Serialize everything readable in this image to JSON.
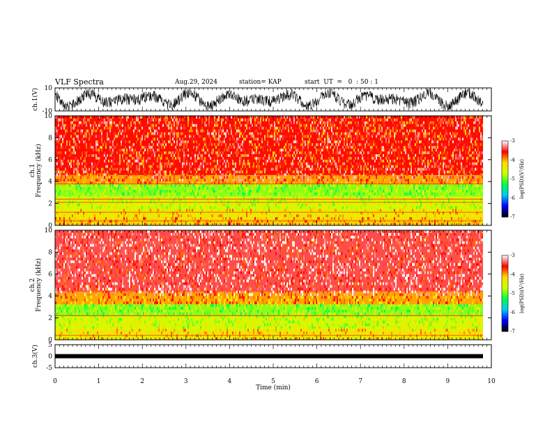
{
  "header": {
    "title": "VLF Spectra",
    "date": "Aug.29, 2024",
    "station": "station= KAP",
    "start": "start  UT  =   0  : 50 : 1"
  },
  "chart_data": [
    {
      "type": "line",
      "panel": "ch1-waveform",
      "ylabel": "ch.1(V)",
      "ylim": [
        -10,
        10
      ],
      "yticks": [
        "10",
        "-10"
      ],
      "x_range": [
        0,
        9.83
      ],
      "series_color": "#000000",
      "description_values": "noisy waveform oscillating mostly between -8 and +8 V"
    },
    {
      "type": "heatmap",
      "panel": "ch1-spectrogram",
      "ylabel": "ch.1\nFrequency (kHz)",
      "ylim": [
        0,
        10
      ],
      "yticks": [
        "0",
        "2",
        "4",
        "6",
        "8",
        "10"
      ],
      "x_range": [
        0,
        9.83
      ],
      "bands": [
        {
          "fmin": 4.0,
          "fmax": 10.0,
          "level": -3.6
        },
        {
          "fmin": 3.7,
          "fmax": 4.6,
          "level": -4.0
        },
        {
          "fmin": 2.6,
          "fmax": 3.7,
          "level": -4.9
        },
        {
          "fmin": 1.4,
          "fmax": 2.6,
          "level": -4.6
        },
        {
          "fmin": 0.6,
          "fmax": 1.4,
          "level": -4.3
        },
        {
          "fmin": 0.0,
          "fmax": 0.6,
          "level": -4.1
        }
      ],
      "lines_khz": [
        3.8,
        2.4,
        2.1,
        1.2,
        0.4
      ]
    },
    {
      "type": "heatmap",
      "panel": "ch2-spectrogram",
      "ylabel": "ch.2\nFrequency (kHz)",
      "ylim": [
        0,
        10
      ],
      "yticks": [
        "0",
        "2",
        "4",
        "6",
        "8",
        "10"
      ],
      "x_range": [
        0,
        9.83
      ],
      "bands": [
        {
          "fmin": 4.0,
          "fmax": 10.0,
          "level": -3.4
        },
        {
          "fmin": 3.2,
          "fmax": 4.4,
          "level": -4.0
        },
        {
          "fmin": 2.2,
          "fmax": 3.2,
          "level": -4.9
        },
        {
          "fmin": 1.0,
          "fmax": 2.2,
          "level": -4.6
        },
        {
          "fmin": 0.0,
          "fmax": 1.0,
          "level": -4.3
        }
      ],
      "lines_khz": [
        2.2,
        0.4
      ]
    },
    {
      "type": "line",
      "panel": "ch3-waveform",
      "ylabel": "ch.3(V)",
      "ylim": [
        -5,
        5
      ],
      "yticks": [
        "5",
        "0",
        "-5"
      ],
      "x_range": [
        0,
        9.83
      ],
      "level_v": 0,
      "series_color": "#000000"
    }
  ],
  "colorbar": {
    "label": "log(PSD)(V²/Hz)",
    "range": [
      -7,
      -3
    ],
    "ticks": [
      "-3",
      "-4",
      "-5",
      "-6",
      "-7"
    ],
    "colors": [
      "#000000",
      "#0000ff",
      "#00c8ff",
      "#00ff44",
      "#ccff00",
      "#ffdd00",
      "#ff0000",
      "#ffffff"
    ]
  },
  "xaxis": {
    "label": "Time (min)",
    "range": [
      0,
      10
    ],
    "ticks": [
      "0",
      "1",
      "2",
      "3",
      "4",
      "5",
      "6",
      "7",
      "8",
      "9",
      "10"
    ]
  }
}
